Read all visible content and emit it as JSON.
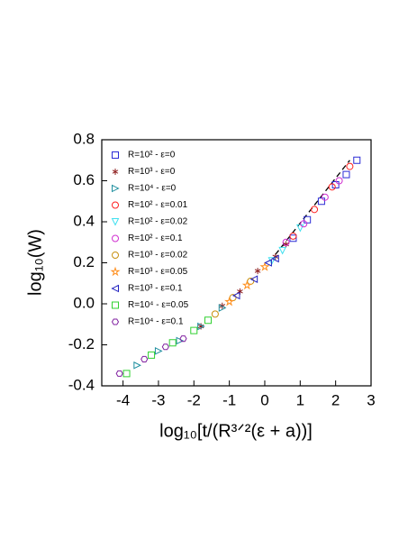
{
  "chart_data": {
    "type": "scatter",
    "x_label": "log₁₀[t/(R³ᐟ²(ε + a))]",
    "y_label": "log₁₀(W)",
    "xlim": [
      -4.6,
      3
    ],
    "xticks": [
      -4,
      -3,
      -2,
      -1,
      0,
      1,
      2,
      3
    ],
    "ylim": [
      -0.4,
      0.8
    ],
    "yticks": [
      {
        "value": -0.4,
        "label": "-0.4"
      },
      {
        "value": -0.2,
        "label": "-0.2"
      },
      {
        "value": 0,
        "label": "0.0"
      },
      {
        "value": 0.2,
        "label": "0.2"
      },
      {
        "value": 0.4,
        "label": "0.4"
      },
      {
        "value": 0.6,
        "label": "0.6"
      },
      {
        "value": 0.8,
        "label": "0.8"
      }
    ],
    "legend_position": "upper left",
    "dashed_line": {
      "color": "#000000",
      "x": [
        0.3,
        2.4
      ],
      "values": [
        0.24,
        0.7
      ]
    },
    "series": [
      {
        "name": "R=10² - ε=0",
        "color": "#2b2bd6",
        "marker": "square",
        "x": [
          0.8,
          1.2,
          1.6,
          2.0,
          2.3,
          2.6
        ],
        "values": [
          0.32,
          0.41,
          0.5,
          0.58,
          0.63,
          0.7
        ]
      },
      {
        "name": "R=10³ - ε=0",
        "color": "#8b1a1a",
        "marker": "asterisk",
        "x": [
          -1.8,
          -1.2,
          -0.7,
          -0.2,
          0.3,
          0.6
        ],
        "values": [
          -0.11,
          -0.01,
          0.06,
          0.16,
          0.23,
          0.29
        ]
      },
      {
        "name": "R=10⁴ - ε=0",
        "color": "#1f8f9f",
        "marker": "triangle-right",
        "x": [
          -3.6,
          -3.0,
          -2.4,
          -1.8,
          -1.2
        ],
        "values": [
          -0.3,
          -0.23,
          -0.18,
          -0.11,
          -0.02
        ]
      },
      {
        "name": "R=10² - ε=0.01",
        "color": "#ff2020",
        "marker": "circle",
        "x": [
          0.8,
          1.4,
          1.9,
          2.4
        ],
        "values": [
          0.33,
          0.46,
          0.57,
          0.67
        ]
      },
      {
        "name": "R=10² - ε=0.02",
        "color": "#40e0f0",
        "marker": "triangle-down",
        "x": [
          0.2,
          0.5,
          1.0
        ],
        "values": [
          0.21,
          0.26,
          0.37
        ]
      },
      {
        "name": "R=10² - ε=0.1",
        "color": "#d030d0",
        "marker": "circle",
        "x": [
          0.6,
          1.1,
          1.7,
          2.1
        ],
        "values": [
          0.3,
          0.39,
          0.52,
          0.6
        ]
      },
      {
        "name": "R=10³ - ε=0.02",
        "color": "#c89010",
        "marker": "circle",
        "x": [
          -1.4,
          -0.9,
          -0.4
        ],
        "values": [
          -0.05,
          0.03,
          0.11
        ]
      },
      {
        "name": "R=10³ - ε=0.05",
        "color": "#ff9020",
        "marker": "star",
        "x": [
          -1.0,
          -0.5,
          0.0
        ],
        "values": [
          0.01,
          0.09,
          0.18
        ]
      },
      {
        "name": "R=10³ - ε=0.1",
        "color": "#2020c0",
        "marker": "triangle-left",
        "x": [
          -0.8,
          -0.3,
          0.1,
          0.3
        ],
        "values": [
          0.04,
          0.12,
          0.2,
          0.22
        ]
      },
      {
        "name": "R=10⁴ - ε=0.05",
        "color": "#30d030",
        "marker": "square",
        "x": [
          -3.9,
          -3.2,
          -2.6,
          -2.0,
          -1.6
        ],
        "values": [
          -0.34,
          -0.25,
          -0.19,
          -0.13,
          -0.08
        ]
      },
      {
        "name": "R=10⁴ - ε=0.1",
        "color": "#8020a0",
        "marker": "hexagon",
        "x": [
          -4.1,
          -3.4,
          -2.8,
          -2.3
        ],
        "values": [
          -0.34,
          -0.27,
          -0.21,
          -0.17
        ]
      }
    ]
  }
}
